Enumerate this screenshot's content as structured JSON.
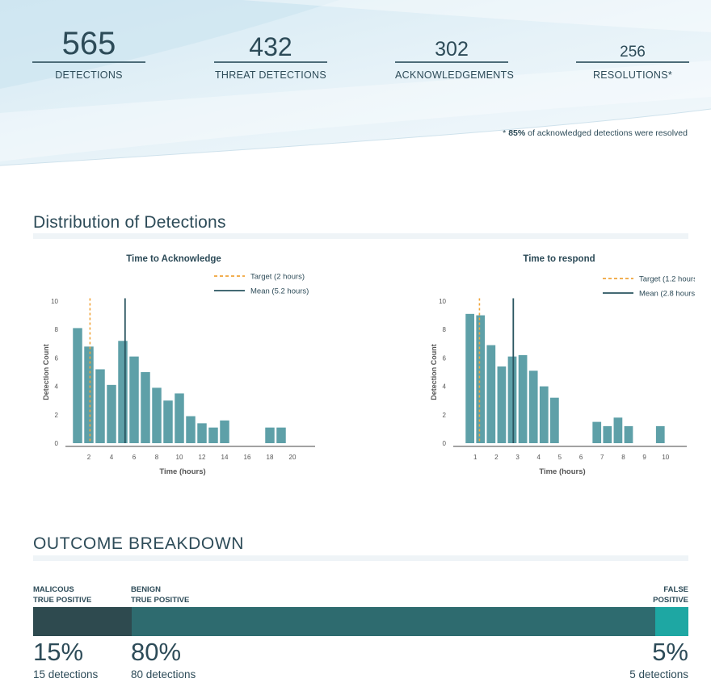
{
  "stats": [
    {
      "value": "565",
      "label": "DETECTIONS"
    },
    {
      "value": "432",
      "label": "THREAT DETECTIONS"
    },
    {
      "value": "302",
      "label": "ACKNOWLEDGEMENTS"
    },
    {
      "value": "256",
      "label": "RESOLUTIONS*"
    }
  ],
  "footnote": {
    "prefix": "* ",
    "bold": "85%",
    "text": " of acknowledged detections were resolved"
  },
  "distribution": {
    "title": "Distribution of Detections"
  },
  "outcome": {
    "title": "OUTCOME BREAKDOWN",
    "segments": [
      {
        "label_line1": "MALICOUS",
        "label_line2": "TRUE POSITIVE",
        "percent_text": "15%",
        "count_text": "15 detections",
        "share": 15,
        "color": "#2e4a4f"
      },
      {
        "label_line1": "BENIGN",
        "label_line2": "TRUE POSITIVE",
        "percent_text": "80%",
        "count_text": "80 detections",
        "share": 80,
        "color": "#2e6b6f"
      },
      {
        "label_line1": "FALSE",
        "label_line2": "POSITIVE",
        "percent_text": "5%",
        "count_text": "5 detections",
        "share": 5,
        "color": "#1ea7a3"
      }
    ]
  },
  "colors": {
    "bar": "#5ea0a8",
    "target": "#f0a43a",
    "mean": "#2a5560",
    "text": "#2d4b58"
  },
  "chart_data": [
    {
      "type": "bar",
      "title": "Time to Acknowledge",
      "xlabel": "Time (hours)",
      "ylabel": "Detection Count",
      "xlim": [
        0,
        22
      ],
      "ylim": [
        0,
        10
      ],
      "x_ticks": [
        2,
        4,
        6,
        8,
        10,
        12,
        14,
        16,
        18,
        20
      ],
      "y_ticks": [
        0,
        2,
        4,
        6,
        8,
        10
      ],
      "bin_width": 1,
      "x": [
        1,
        2,
        3,
        4,
        5,
        6,
        7,
        8,
        9,
        10,
        11,
        12,
        13,
        14,
        15,
        16,
        17,
        18,
        19,
        20
      ],
      "values": [
        8.1,
        6.8,
        5.2,
        4.1,
        7.2,
        6.1,
        5.0,
        3.9,
        3.0,
        3.5,
        1.9,
        1.4,
        1.1,
        1.6,
        0,
        0,
        0,
        1.1,
        1.1,
        0
      ],
      "target": {
        "x": 2.1,
        "label": "Target (2 hours)"
      },
      "mean": {
        "x": 5.2,
        "label": "Mean (5.2 hours)"
      }
    },
    {
      "type": "bar",
      "title": "Time to respond",
      "xlabel": "Time (hours)",
      "ylabel": "Detection Count",
      "xlim": [
        0,
        11
      ],
      "ylim": [
        0,
        10
      ],
      "x_ticks": [
        1,
        2,
        3,
        4,
        5,
        6,
        7,
        8,
        9,
        10
      ],
      "y_ticks": [
        0,
        2,
        4,
        6,
        8,
        10
      ],
      "bin_width": 0.5,
      "x": [
        0.75,
        1.25,
        1.75,
        2.25,
        2.75,
        3.25,
        3.75,
        4.25,
        4.75,
        5.25,
        5.75,
        6.25,
        6.75,
        7.25,
        7.75,
        8.25,
        8.75,
        9.25,
        9.75
      ],
      "values": [
        9.1,
        9.0,
        6.9,
        5.4,
        6.1,
        6.2,
        5.1,
        4.0,
        3.2,
        0,
        0,
        0,
        1.5,
        1.2,
        1.8,
        1.2,
        0,
        0,
        1.2
      ],
      "target": {
        "x": 1.2,
        "label": "Target (1.2 hours)"
      },
      "mean": {
        "x": 2.8,
        "label": "Mean (2.8 hours)"
      }
    }
  ]
}
